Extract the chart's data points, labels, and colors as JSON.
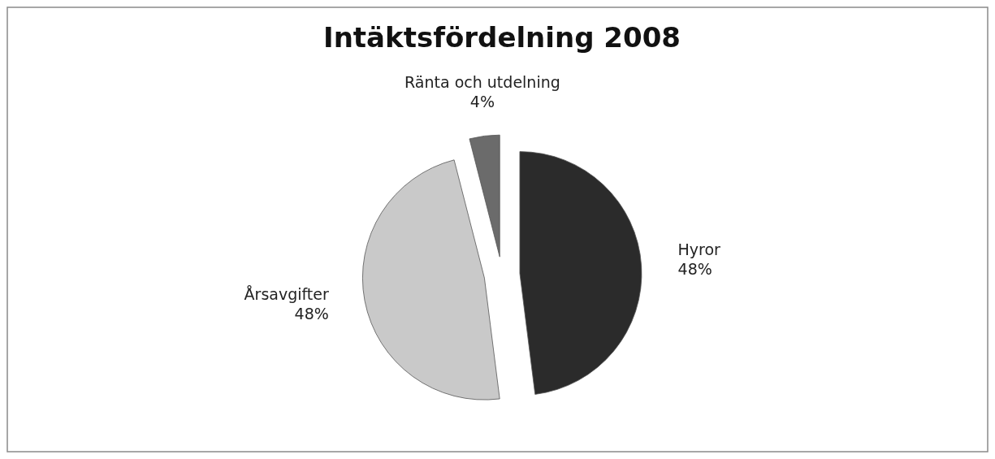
{
  "chart_data": {
    "type": "pie",
    "title": "Intäktsfördelning 2008",
    "categories": [
      "Hyror",
      "Årsavgifter",
      "Ränta och utdelning"
    ],
    "values": [
      48,
      48,
      4
    ],
    "colors": [
      "#2b2b2b",
      "#c9c9c9",
      "#6b6b6b"
    ],
    "value_labels": [
      "48%",
      "48%",
      "4%"
    ],
    "legend": false
  }
}
